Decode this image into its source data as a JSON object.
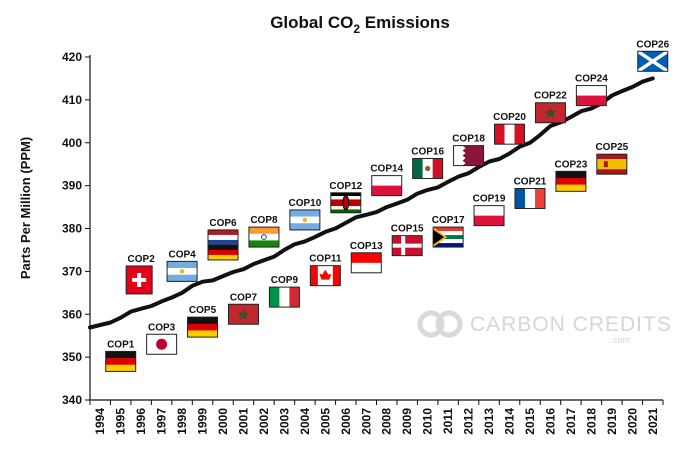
{
  "chart_data": {
    "type": "line",
    "title": "Global CO",
    "title_subscript": "2",
    "title_suffix": " Emissions",
    "ylabel": "Parts Per Million (PPM)",
    "xlabel": "",
    "ylim": [
      340,
      420
    ],
    "yticks": [
      340,
      350,
      360,
      370,
      380,
      390,
      400,
      410,
      420
    ],
    "x": [
      "1994",
      "1995",
      "1996",
      "1997",
      "1998",
      "1999",
      "2000",
      "2001",
      "2002",
      "2003",
      "2004",
      "2005",
      "2006",
      "2007",
      "2008",
      "2009",
      "2010",
      "2011",
      "2012",
      "2013",
      "2014",
      "2015",
      "2016",
      "2017",
      "2018",
      "2019",
      "2020",
      "2021"
    ],
    "series": [
      {
        "values": [
          357.5,
          359.2,
          361.3,
          363.0,
          365.0,
          367.6,
          368.9,
          370.5,
          372.6,
          375.0,
          377.0,
          379.2,
          381.3,
          383.2,
          385.0,
          386.7,
          389.0,
          390.9,
          392.9,
          395.6,
          397.5,
          400.0,
          403.9,
          406.0,
          408.0,
          411.0,
          413.0,
          415.0
        ],
        "color": "#111111"
      }
    ],
    "grid": false,
    "annotations": [
      {
        "label": "COP1",
        "year": "1995",
        "level": 349,
        "flag": "germany"
      },
      {
        "label": "COP2",
        "year": "1996",
        "level": 368,
        "flag": "switzerland"
      },
      {
        "label": "COP3",
        "year": "1997",
        "level": 353,
        "flag": "japan"
      },
      {
        "label": "COP4",
        "year": "1998",
        "level": 370,
        "flag": "argentina"
      },
      {
        "label": "COP5",
        "year": "1999",
        "level": 357,
        "flag": "germany"
      },
      {
        "label": "COP6",
        "year": "2000",
        "level": 375,
        "flag": "netherlands-germany"
      },
      {
        "label": "COP7",
        "year": "2001",
        "level": 360,
        "flag": "morocco"
      },
      {
        "label": "COP8",
        "year": "2002",
        "level": 378,
        "flag": "india"
      },
      {
        "label": "COP9",
        "year": "2003",
        "level": 364,
        "flag": "italy"
      },
      {
        "label": "COP10",
        "year": "2004",
        "level": 382,
        "flag": "argentina"
      },
      {
        "label": "COP11",
        "year": "2005",
        "level": 369,
        "flag": "canada"
      },
      {
        "label": "COP12",
        "year": "2006",
        "level": 386,
        "flag": "kenya"
      },
      {
        "label": "COP13",
        "year": "2007",
        "level": 372,
        "flag": "indonesia"
      },
      {
        "label": "COP14",
        "year": "2008",
        "level": 390,
        "flag": "poland"
      },
      {
        "label": "COP15",
        "year": "2009",
        "level": 376,
        "flag": "denmark"
      },
      {
        "label": "COP16",
        "year": "2010",
        "level": 394,
        "flag": "mexico"
      },
      {
        "label": "COP17",
        "year": "2011",
        "level": 378,
        "flag": "south-africa"
      },
      {
        "label": "COP18",
        "year": "2012",
        "level": 397,
        "flag": "qatar"
      },
      {
        "label": "COP19",
        "year": "2013",
        "level": 383,
        "flag": "poland"
      },
      {
        "label": "COP20",
        "year": "2014",
        "level": 402,
        "flag": "peru"
      },
      {
        "label": "COP21",
        "year": "2015",
        "level": 387,
        "flag": "france"
      },
      {
        "label": "COP22",
        "year": "2016",
        "level": 407,
        "flag": "morocco"
      },
      {
        "label": "COP23",
        "year": "2017",
        "level": 391,
        "flag": "germany"
      },
      {
        "label": "COP24",
        "year": "2018",
        "level": 411,
        "flag": "poland"
      },
      {
        "label": "COP25",
        "year": "2019",
        "level": 395,
        "flag": "spain"
      },
      {
        "label": "COP26",
        "year": "2021",
        "level": 419,
        "flag": "scotland"
      }
    ]
  },
  "watermark": {
    "text": "CARBON CREDITS",
    "subtext": ".com",
    "icon": "carbon-credits-logo-icon"
  },
  "colors": {
    "line": "#111111",
    "watermark": "#d6d6d6"
  }
}
